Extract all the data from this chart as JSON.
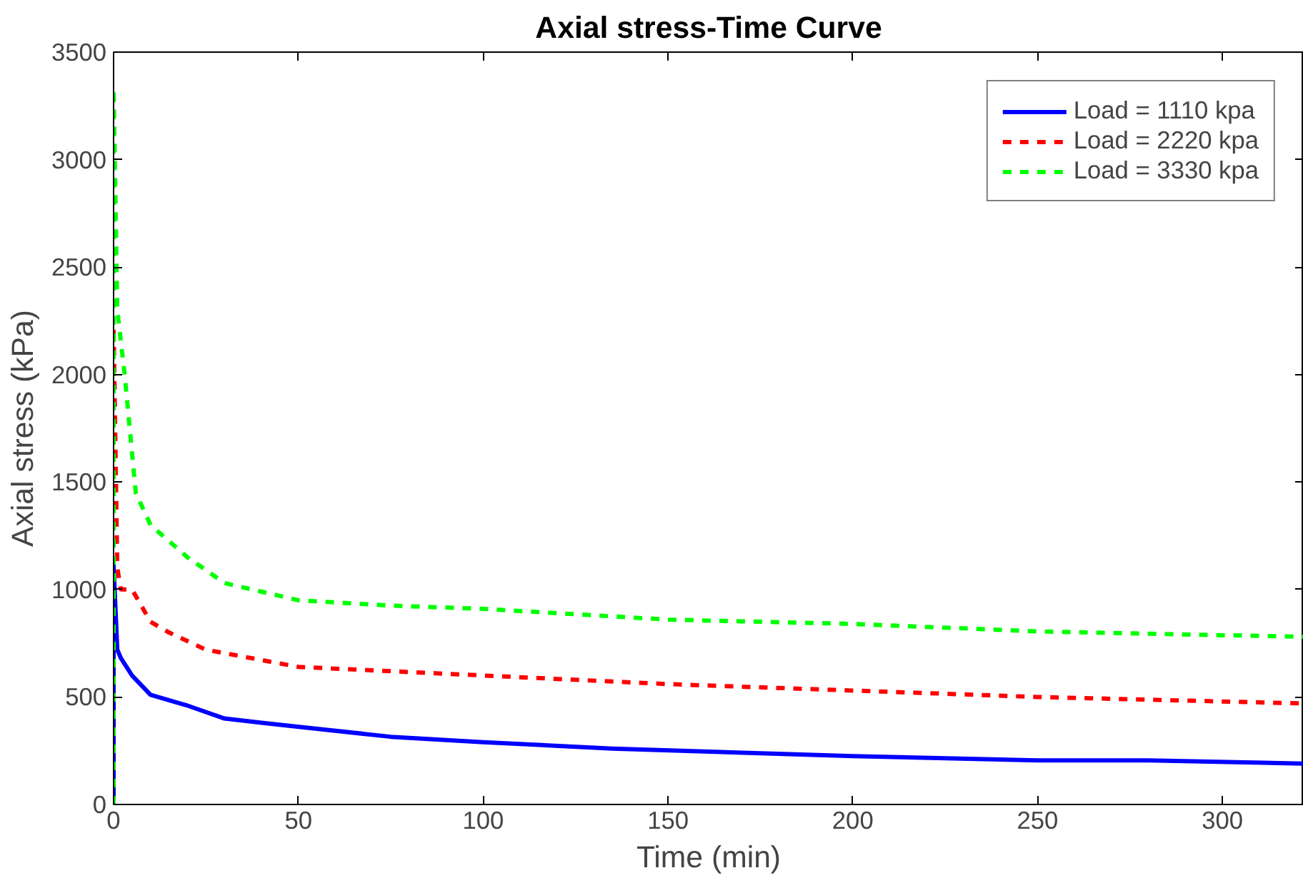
{
  "chart_data": {
    "type": "line",
    "title": "Axial stress-Time Curve",
    "xlabel": "Time (min)",
    "ylabel": "Axial stress (kPa)",
    "xlim": [
      0,
      322
    ],
    "ylim": [
      0,
      3500
    ],
    "xticks": [
      0,
      50,
      100,
      150,
      200,
      250,
      300
    ],
    "yticks": [
      0,
      500,
      1000,
      1500,
      2000,
      2500,
      3000,
      3500
    ],
    "grid": false,
    "legend": "top right",
    "marker": "none",
    "series": [
      {
        "name": "Load = 1110 kpa",
        "color": "#0000ff",
        "line_style": "solid",
        "x": [
          0,
          0,
          1,
          2,
          5,
          10,
          20,
          30,
          40,
          75,
          100,
          135,
          200,
          250,
          280,
          322
        ],
        "values": [
          0,
          1110,
          720,
          680,
          600,
          510,
          460,
          400,
          380,
          315,
          290,
          260,
          225,
          205,
          205,
          190
        ]
      },
      {
        "name": "Load = 2220 kpa",
        "color": "#ff0000",
        "line_style": "dashed",
        "x": [
          0,
          0,
          1,
          2,
          5,
          10,
          15,
          25,
          50,
          100,
          150,
          200,
          250,
          322
        ],
        "values": [
          0,
          2220,
          1100,
          1000,
          1000,
          850,
          800,
          720,
          640,
          600,
          560,
          530,
          500,
          470
        ]
      },
      {
        "name": "Load = 3330 kpa",
        "color": "#00ff00",
        "line_style": "dashed",
        "x": [
          0,
          0,
          1,
          3,
          6,
          10,
          20,
          30,
          50,
          75,
          100,
          150,
          200,
          250,
          322
        ],
        "values": [
          0,
          3330,
          2300,
          2000,
          1450,
          1300,
          1150,
          1030,
          950,
          925,
          910,
          860,
          840,
          805,
          780
        ]
      }
    ]
  }
}
